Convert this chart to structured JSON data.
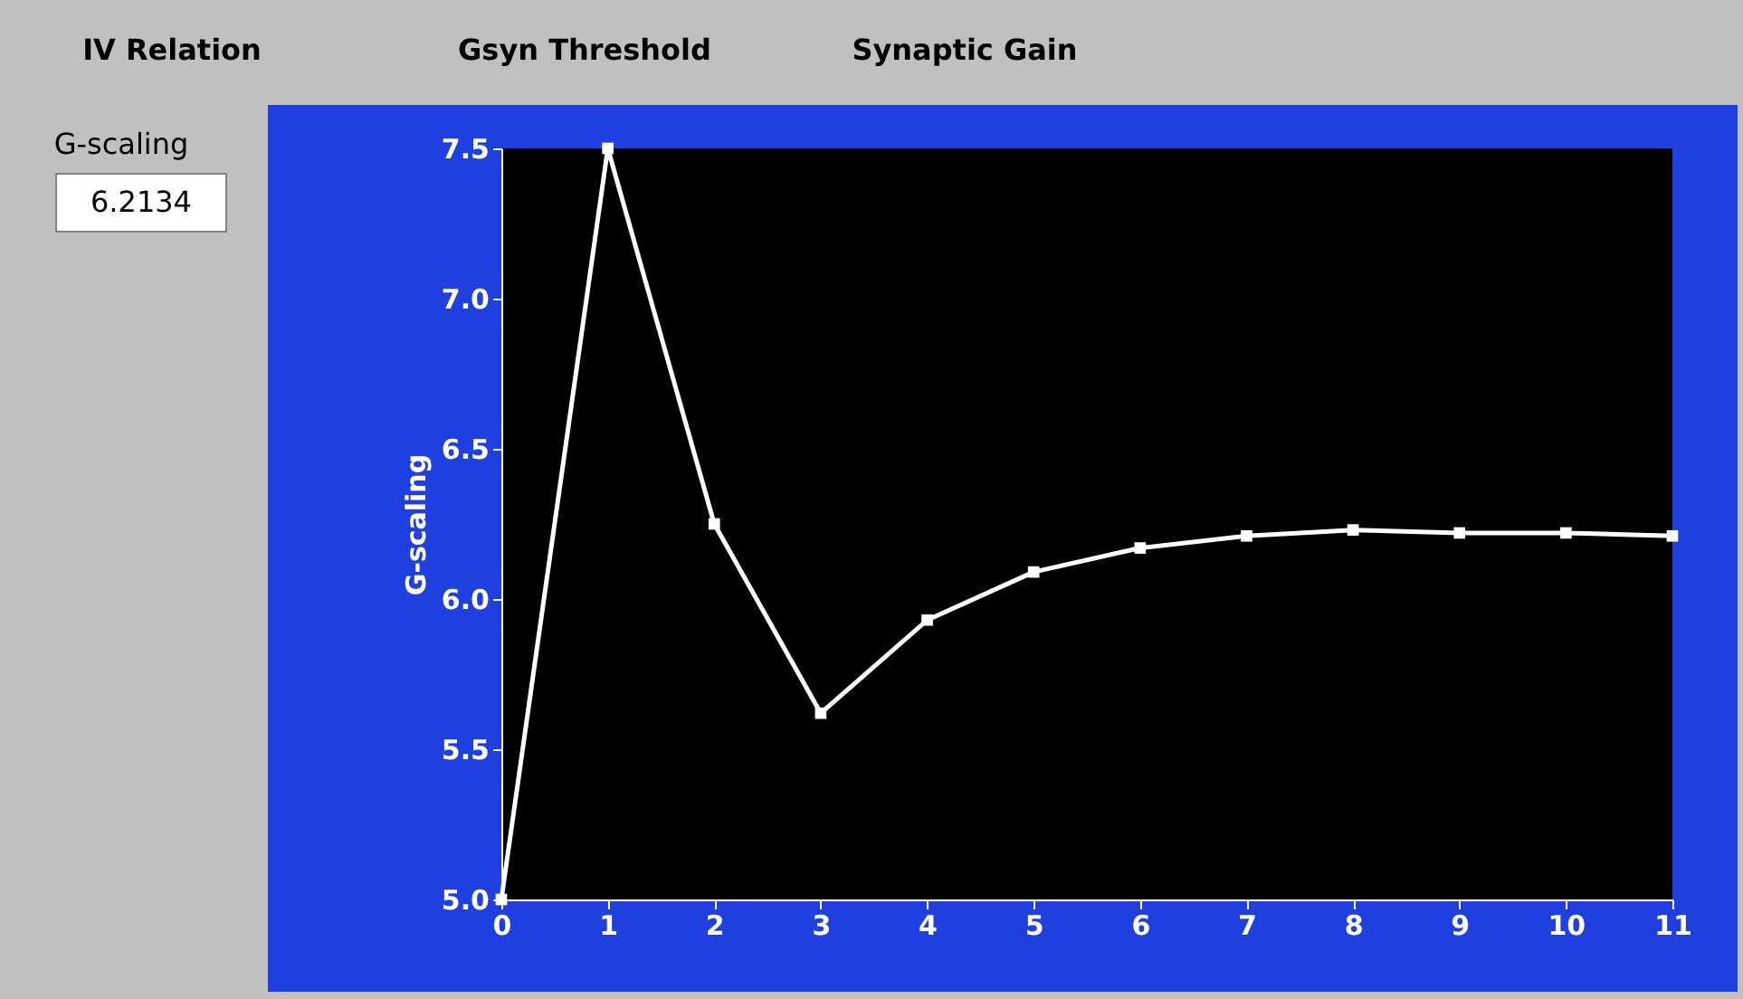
{
  "chart_data": {
    "type": "line",
    "ylabel": "G-scaling",
    "x": [
      0,
      1,
      2,
      3,
      4,
      5,
      6,
      7,
      8,
      9,
      10,
      11
    ],
    "series": [
      {
        "color": "#ffffff",
        "values": [
          5.0,
          7.5,
          6.25,
          5.62,
          5.93,
          6.09,
          6.17,
          6.21,
          6.23,
          6.22,
          6.22,
          6.21
        ]
      }
    ],
    "xlim": [
      0,
      11
    ],
    "xticks": [
      0,
      1,
      2,
      3,
      4,
      5,
      6,
      7,
      8,
      9,
      10,
      11
    ],
    "ylim": [
      5.0,
      7.5
    ],
    "yticks": [
      {
        "value": 5.0,
        "label": "5.0"
      },
      {
        "value": 5.5,
        "label": "5.5"
      },
      {
        "value": 6.0,
        "label": "6.0"
      },
      {
        "value": 6.5,
        "label": "6.5"
      },
      {
        "value": 7.0,
        "label": "7.0"
      },
      {
        "value": 7.5,
        "label": "7.5"
      }
    ],
    "marker": "square",
    "line_style": "solid",
    "grid": false,
    "annotations": [
      "IV Relation",
      "Gsyn Threshold",
      "Synaptic Gain",
      "G-scaling",
      "6.2134"
    ]
  }
}
